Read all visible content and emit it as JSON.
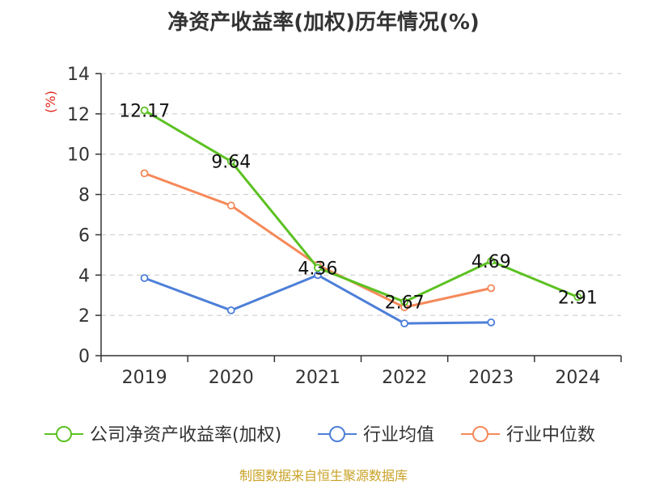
{
  "chart_data": {
    "type": "line",
    "title": "净资产收益率(加权)历年情况(%)",
    "ylabel": "(%)",
    "xlabel": "",
    "categories": [
      "2019",
      "2020",
      "2021",
      "2022",
      "2023",
      "2024"
    ],
    "ylim": [
      0,
      14
    ],
    "yticks": [
      0,
      2,
      4,
      6,
      8,
      10,
      12,
      14
    ],
    "grid": true,
    "legend_position": "bottom",
    "series": [
      {
        "name": "公司净资产收益率(加权)",
        "color": "#5cc122",
        "values": [
          12.17,
          9.64,
          4.36,
          2.67,
          4.69,
          2.91
        ],
        "labels": [
          "12.17",
          "9.64",
          "4.36",
          "2.67",
          "4.69",
          "2.91"
        ]
      },
      {
        "name": "行业均值",
        "color": "#4d7fd8",
        "values": [
          3.85,
          2.25,
          4.0,
          1.6,
          1.65,
          null
        ]
      },
      {
        "name": "行业中位数",
        "color": "#f5895a",
        "values": [
          9.05,
          7.45,
          4.5,
          2.4,
          3.35,
          null
        ]
      }
    ]
  },
  "source": "制图数据来自恒生聚源数据库"
}
